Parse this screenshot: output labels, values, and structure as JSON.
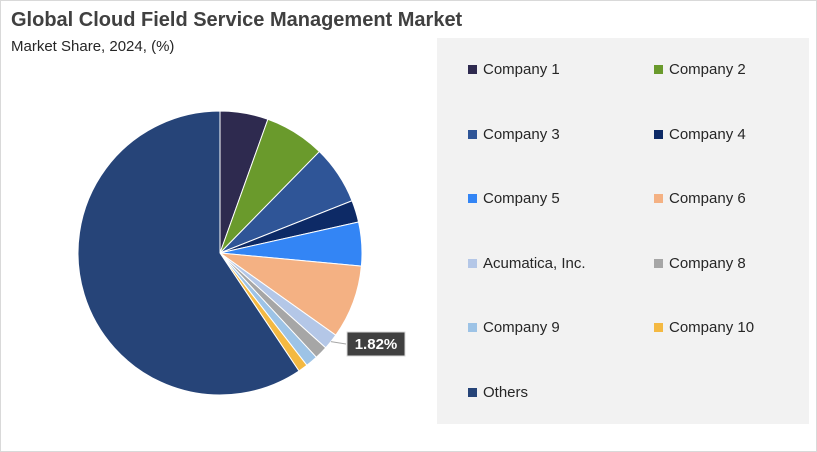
{
  "title": "Global Cloud Field Service Management Market",
  "subtitle": "Market Share, 2024, (%)",
  "chart_data": {
    "type": "pie",
    "title": "Global Cloud Field Service Management Market",
    "subtitle": "Market Share, 2024, (%)",
    "legend_position": "right",
    "slices": [
      {
        "label": "Company 1",
        "value": 5.5,
        "color": "#2e2a4f"
      },
      {
        "label": "Company 2",
        "value": 6.9,
        "color": "#6a9a2c"
      },
      {
        "label": "Company 3",
        "value": 6.7,
        "color": "#2f5597"
      },
      {
        "label": "Company 4",
        "value": 2.5,
        "color": "#0d2a66"
      },
      {
        "label": "Company 5",
        "value": 5.0,
        "color": "#3385f5"
      },
      {
        "label": "Company 6",
        "value": 8.4,
        "color": "#f4b183"
      },
      {
        "label": "Acumatica, Inc.",
        "value": 1.82,
        "color": "#b4c7e7",
        "data_label": "1.82%"
      },
      {
        "label": "Company 8",
        "value": 1.5,
        "color": "#a6a6a6"
      },
      {
        "label": "Company 9",
        "value": 1.4,
        "color": "#9dc3e6"
      },
      {
        "label": "Company 10",
        "value": 1.1,
        "color": "#f4b942"
      },
      {
        "label": "Others",
        "value": 59.68,
        "color": "#264478"
      }
    ]
  }
}
